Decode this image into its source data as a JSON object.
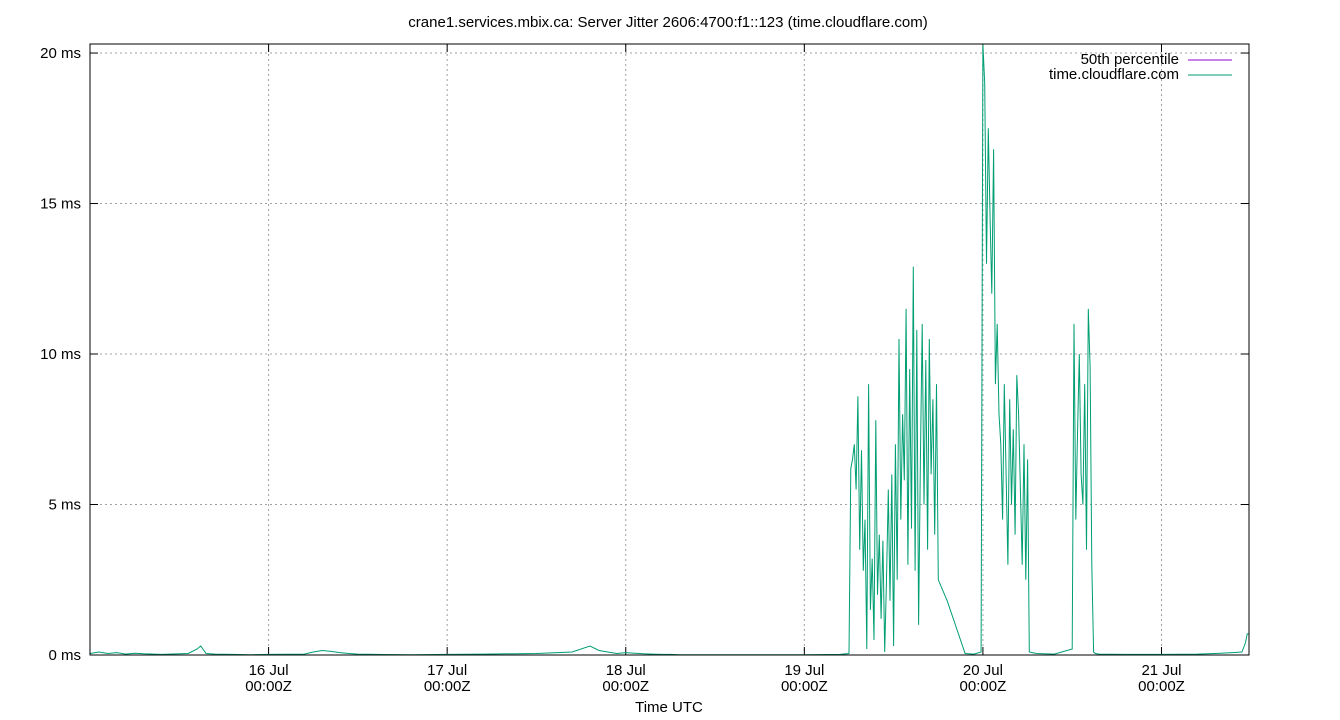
{
  "chart_data": {
    "type": "line",
    "title": "crane1.services.mbix.ca: Server Jitter 2606:4700:f1::123 (time.cloudflare.com)",
    "xlabel": "Time UTC",
    "ylabel": "",
    "x_unit": "days since 15 Jul 00:00Z",
    "xlim": [
      0.0,
      6.49
    ],
    "ylim": [
      0,
      20.3
    ],
    "grid": true,
    "legend_position": "top-right",
    "y_ticks": [
      {
        "value": 0,
        "label": "0 ms"
      },
      {
        "value": 5,
        "label": "5 ms"
      },
      {
        "value": 10,
        "label": "10 ms"
      },
      {
        "value": 15,
        "label": "15 ms"
      },
      {
        "value": 20,
        "label": "20 ms"
      }
    ],
    "x_ticks": [
      {
        "value": 1,
        "line1": "16 Jul",
        "line2": "00:00Z"
      },
      {
        "value": 2,
        "line1": "17 Jul",
        "line2": "00:00Z"
      },
      {
        "value": 3,
        "line1": "18 Jul",
        "line2": "00:00Z"
      },
      {
        "value": 4,
        "line1": "19 Jul",
        "line2": "00:00Z"
      },
      {
        "value": 5,
        "line1": "20 Jul",
        "line2": "00:00Z"
      },
      {
        "value": 6,
        "line1": "21 Jul",
        "line2": "00:00Z"
      }
    ],
    "series": [
      {
        "name": "50th percentile",
        "color": "#9400d3",
        "x": [
          0.0,
          6.49
        ],
        "y": [
          0.0,
          0.0
        ]
      },
      {
        "name": "time.cloudflare.com",
        "color": "#009e73",
        "x": [
          0.0,
          0.05,
          0.1,
          0.15,
          0.2,
          0.25,
          0.3,
          0.4,
          0.55,
          0.6,
          0.62,
          0.65,
          0.7,
          0.8,
          0.9,
          1.0,
          1.2,
          1.25,
          1.3,
          1.35,
          1.4,
          1.45,
          1.5,
          1.6,
          1.8,
          2.0,
          2.2,
          2.5,
          2.7,
          2.8,
          2.85,
          2.9,
          2.95,
          3.0,
          3.05,
          3.1,
          3.15,
          3.2,
          3.25,
          3.3,
          3.4,
          3.6,
          3.8,
          4.0,
          4.2,
          4.25,
          4.26,
          4.27,
          4.28,
          4.29,
          4.3,
          4.31,
          4.32,
          4.33,
          4.34,
          4.35,
          4.36,
          4.37,
          4.38,
          4.39,
          4.4,
          4.41,
          4.42,
          4.43,
          4.44,
          4.45,
          4.46,
          4.47,
          4.48,
          4.49,
          4.5,
          4.51,
          4.52,
          4.53,
          4.54,
          4.55,
          4.56,
          4.57,
          4.58,
          4.59,
          4.6,
          4.61,
          4.62,
          4.63,
          4.64,
          4.65,
          4.66,
          4.67,
          4.68,
          4.69,
          4.7,
          4.71,
          4.72,
          4.73,
          4.74,
          4.75,
          4.8,
          4.9,
          4.95,
          4.99,
          5.0,
          5.01,
          5.02,
          5.03,
          5.04,
          5.05,
          5.06,
          5.07,
          5.08,
          5.09,
          5.1,
          5.11,
          5.12,
          5.13,
          5.14,
          5.15,
          5.16,
          5.17,
          5.18,
          5.19,
          5.2,
          5.21,
          5.22,
          5.23,
          5.24,
          5.25,
          5.26,
          5.3,
          5.4,
          5.5,
          5.51,
          5.52,
          5.53,
          5.54,
          5.55,
          5.56,
          5.57,
          5.58,
          5.59,
          5.6,
          5.61,
          5.62,
          5.63,
          5.65,
          5.8,
          6.0,
          6.2,
          6.3,
          6.4,
          6.45,
          6.47,
          6.48,
          6.49
        ],
        "y": [
          0.05,
          0.1,
          0.05,
          0.08,
          0.03,
          0.06,
          0.04,
          0.02,
          0.05,
          0.2,
          0.3,
          0.05,
          0.03,
          0.02,
          0.01,
          0.02,
          0.03,
          0.1,
          0.15,
          0.12,
          0.08,
          0.05,
          0.03,
          0.02,
          0.01,
          0.02,
          0.03,
          0.05,
          0.1,
          0.3,
          0.15,
          0.1,
          0.05,
          0.08,
          0.06,
          0.04,
          0.03,
          0.02,
          0.02,
          0.01,
          0.01,
          0.01,
          0.01,
          0.01,
          0.02,
          0.05,
          6.2,
          6.5,
          7.0,
          5.5,
          8.6,
          3.5,
          6.8,
          2.8,
          4.5,
          0.2,
          9.0,
          1.5,
          3.2,
          0.5,
          7.8,
          2.0,
          4.0,
          1.2,
          3.8,
          0.1,
          2.5,
          5.5,
          1.8,
          6.0,
          0.3,
          7.0,
          2.5,
          10.5,
          4.5,
          8.0,
          5.8,
          11.5,
          3.0,
          9.5,
          4.2,
          12.9,
          2.8,
          10.8,
          1.0,
          6.5,
          11.0,
          5.0,
          9.8,
          3.5,
          10.5,
          6.0,
          8.5,
          4.0,
          9.0,
          2.5,
          1.8,
          0.05,
          0.03,
          0.1,
          20.3,
          19.0,
          13.0,
          17.5,
          14.5,
          12.0,
          16.8,
          9.0,
          11.0,
          8.0,
          7.0,
          4.5,
          9.0,
          6.0,
          3.0,
          8.5,
          5.0,
          7.5,
          4.0,
          9.3,
          8.0,
          5.5,
          3.0,
          7.0,
          2.5,
          6.5,
          0.1,
          0.05,
          0.03,
          0.2,
          11.0,
          4.5,
          7.5,
          10.0,
          6.0,
          5.0,
          9.0,
          3.5,
          11.5,
          9.6,
          3.0,
          0.1,
          0.05,
          0.03,
          0.02,
          0.02,
          0.03,
          0.05,
          0.08,
          0.1,
          0.4,
          0.7,
          0.7
        ]
      }
    ]
  }
}
